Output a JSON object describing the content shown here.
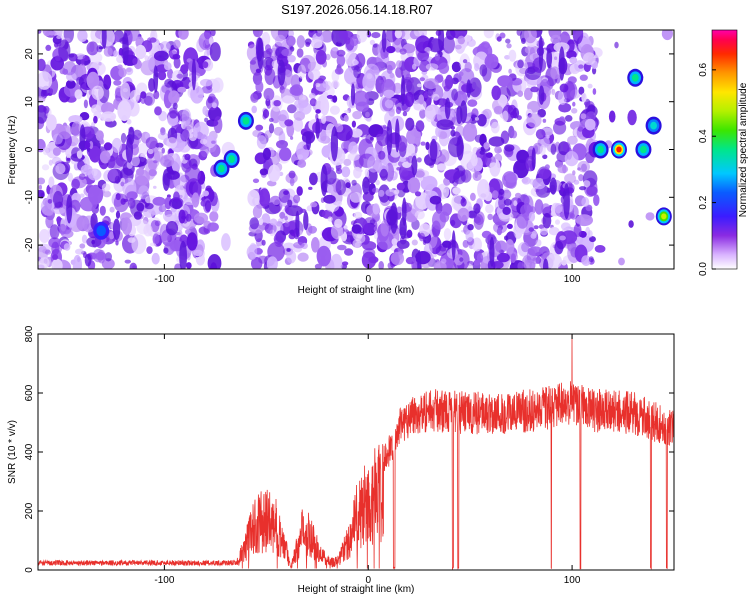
{
  "title": "S197.2026.056.14.18.R07",
  "chart_data": [
    {
      "type": "heatmap",
      "xlabel": "Height of straight line (km)",
      "ylabel": "Frequency (Hz)",
      "xlim": [
        -162,
        150
      ],
      "ylim": [
        -25,
        25
      ],
      "xticks": [
        -100,
        0,
        100
      ],
      "yticks": [
        -20,
        -10,
        0,
        10,
        20
      ],
      "colorbar": {
        "label": "Normalized spectral amplitude",
        "range": [
          0.0,
          0.72
        ],
        "ticks": [
          0.0,
          0.2,
          0.4,
          0.6
        ],
        "tick_labels": [
          "0.0",
          "0.2",
          "0.4",
          "0.6"
        ]
      },
      "gaps_km": [
        [
          -75,
          -58
        ],
        [
          112,
          150
        ]
      ],
      "hotspots": [
        {
          "x": -60,
          "y": 6,
          "amplitude": 0.5
        },
        {
          "x": -67,
          "y": -2,
          "amplitude": 0.45
        },
        {
          "x": -72,
          "y": -4,
          "amplitude": 0.4
        },
        {
          "x": 114,
          "y": 0,
          "amplitude": 0.45
        },
        {
          "x": 123,
          "y": 0,
          "amplitude": 0.7
        },
        {
          "x": 131,
          "y": 15,
          "amplitude": 0.45
        },
        {
          "x": 135,
          "y": 0,
          "amplitude": 0.4
        },
        {
          "x": 140,
          "y": 5,
          "amplitude": 0.35
        },
        {
          "x": 145,
          "y": -14,
          "amplitude": 0.55
        },
        {
          "x": -131,
          "y": -17,
          "amplitude": 0.2
        }
      ]
    },
    {
      "type": "line",
      "xlabel": "Height of straight line (km)",
      "ylabel": "SNR (10 * v/v)",
      "xlim": [
        -162,
        150
      ],
      "ylim": [
        0,
        800
      ],
      "xticks": [
        -100,
        0,
        100
      ],
      "yticks": [
        0,
        200,
        400,
        600,
        800
      ],
      "color": "#e8302c",
      "envelope": [
        {
          "x": -162,
          "y": 20
        },
        {
          "x": -80,
          "y": 20
        },
        {
          "x": -65,
          "y": 25
        },
        {
          "x": -62,
          "y": 80
        },
        {
          "x": -55,
          "y": 220
        },
        {
          "x": -50,
          "y": 230
        },
        {
          "x": -45,
          "y": 200
        },
        {
          "x": -40,
          "y": 80
        },
        {
          "x": -38,
          "y": 10
        },
        {
          "x": -32,
          "y": 190
        },
        {
          "x": -28,
          "y": 160
        },
        {
          "x": -24,
          "y": 80
        },
        {
          "x": -20,
          "y": 40
        },
        {
          "x": -15,
          "y": 40
        },
        {
          "x": -10,
          "y": 130
        },
        {
          "x": -5,
          "y": 260
        },
        {
          "x": 0,
          "y": 320
        },
        {
          "x": 5,
          "y": 360
        },
        {
          "x": 10,
          "y": 420
        },
        {
          "x": 15,
          "y": 500
        },
        {
          "x": 20,
          "y": 550
        },
        {
          "x": 30,
          "y": 570
        },
        {
          "x": 50,
          "y": 560
        },
        {
          "x": 70,
          "y": 560
        },
        {
          "x": 90,
          "y": 580
        },
        {
          "x": 100,
          "y": 600
        },
        {
          "x": 110,
          "y": 570
        },
        {
          "x": 130,
          "y": 560
        },
        {
          "x": 150,
          "y": 500
        }
      ],
      "spike": {
        "x": 100,
        "y": 800
      },
      "dropouts_start_km": 10
    }
  ]
}
